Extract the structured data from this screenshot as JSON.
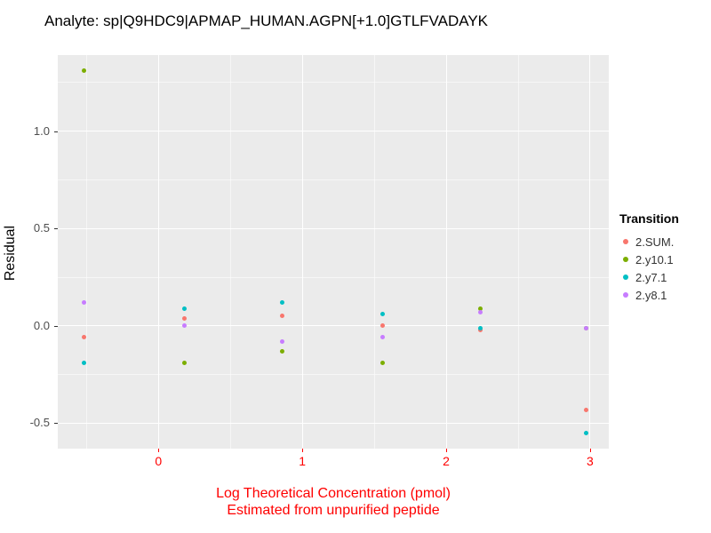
{
  "chart_data": {
    "type": "scatter",
    "title": "Analyte: sp|Q9HDC9|APMAP_HUMAN.AGPN[+1.0]GTLFVADAYK",
    "ylabel": "Residual",
    "xlabel_line1": "Log Theoretical Concentration (pmol)",
    "xlabel_line2": "Estimated from unpurified peptide",
    "xlim": [
      -0.7,
      3.13
    ],
    "ylim": [
      -0.63,
      1.39
    ],
    "grid": true,
    "legend_position": "right",
    "legend_title": "Transition",
    "x_ticks": {
      "values": [
        0,
        1,
        2,
        3
      ],
      "labels": [
        "0",
        "1",
        "2",
        "3"
      ]
    },
    "y_ticks": {
      "values": [
        -0.5,
        0.0,
        0.5,
        1.0
      ],
      "labels": [
        "-0.5",
        "0.0",
        "0.5",
        "1.0"
      ]
    },
    "x_minor": [
      -0.5,
      0.5,
      1.5,
      2.5
    ],
    "y_minor": [
      -0.25,
      0.25,
      0.75,
      1.25
    ],
    "colors": {
      "panel_background": "#EBEBEB",
      "gridline": "#FFFFFF",
      "axis_red": "#FF0000",
      "tick_label_y": "#4D4D4D",
      "tick_mark": "#333333"
    },
    "series": [
      {
        "name": "2.SUM.",
        "color": "#F8766D",
        "points": [
          [
            -0.52,
            -0.06
          ],
          [
            0.18,
            0.04
          ],
          [
            0.86,
            0.05
          ],
          [
            1.56,
            0.0
          ],
          [
            2.24,
            -0.02
          ],
          [
            2.97,
            -0.43
          ]
        ]
      },
      {
        "name": "2.y10.1",
        "color": "#7CAE00",
        "points": [
          [
            -0.52,
            1.31
          ],
          [
            0.18,
            -0.19
          ],
          [
            0.86,
            -0.13
          ],
          [
            1.56,
            -0.19
          ],
          [
            2.24,
            0.09
          ],
          [
            2.97,
            -0.01
          ]
        ]
      },
      {
        "name": "2.y7.1",
        "color": "#00BFC4",
        "points": [
          [
            -0.52,
            -0.19
          ],
          [
            0.18,
            0.09
          ],
          [
            0.86,
            0.12
          ],
          [
            1.56,
            0.06
          ],
          [
            2.24,
            -0.01
          ],
          [
            2.97,
            -0.55
          ]
        ]
      },
      {
        "name": "2.y8.1",
        "color": "#C77CFF",
        "points": [
          [
            -0.52,
            0.12
          ],
          [
            0.18,
            0.0
          ],
          [
            0.86,
            -0.08
          ],
          [
            1.56,
            -0.06
          ],
          [
            2.24,
            0.07
          ],
          [
            2.97,
            -0.01
          ]
        ]
      }
    ]
  }
}
